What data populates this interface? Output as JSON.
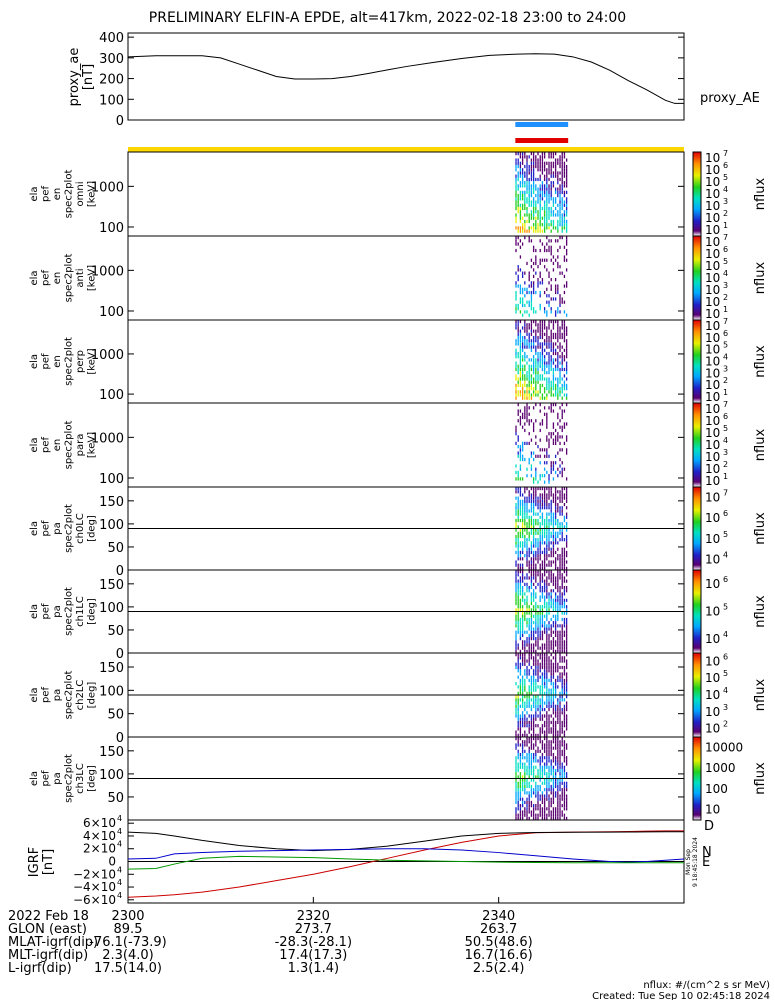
{
  "title": "PRELIMINARY ELFIN-A EPDE, alt=417km, 2022-02-18 23:00 to 24:00",
  "chart_data": [
    {
      "type": "line",
      "panel": "proxy_ae",
      "ylabel_lines": [
        "proxy_ae",
        "[nT]"
      ],
      "series": [
        {
          "name": "proxy_AE",
          "color": "#000000",
          "x": [
            0,
            3,
            5,
            8,
            10,
            12,
            14,
            16,
            18,
            20,
            22,
            24,
            26,
            28,
            30,
            33,
            36,
            39,
            42,
            44,
            46,
            48,
            50,
            52,
            54,
            56,
            58,
            59,
            60
          ],
          "values": [
            305,
            310,
            310,
            310,
            300,
            270,
            240,
            210,
            198,
            198,
            200,
            210,
            225,
            242,
            258,
            278,
            297,
            312,
            318,
            320,
            318,
            305,
            280,
            240,
            190,
            145,
            95,
            80,
            80
          ]
        }
      ],
      "yticks": [
        "0",
        "100",
        "200",
        "300",
        "400"
      ],
      "ylim": [
        0,
        420
      ]
    },
    {
      "type": "heatmap",
      "panel": "ela_pef_en_spec2plot_omni",
      "ylabel_lines": [
        "ela",
        "pef",
        "en",
        "spec2plot",
        "omni",
        "[keV]"
      ],
      "yticks": [
        "100",
        "1000"
      ],
      "log_y": true,
      "ylim": [
        60,
        7000
      ],
      "colorbar": {
        "label": "nflux",
        "ticks": [
          "10",
          "10",
          "10",
          "10",
          "10",
          "10",
          "10"
        ],
        "exponents": [
          "1",
          "2",
          "3",
          "4",
          "5",
          "6",
          "7"
        ]
      }
    },
    {
      "type": "heatmap",
      "panel": "ela_pef_en_spec2plot_anti",
      "ylabel_lines": [
        "ela",
        "pef",
        "en",
        "spec2plot",
        "anti",
        "[keV]"
      ],
      "yticks": [
        "100",
        "1000"
      ],
      "log_y": true,
      "ylim": [
        60,
        7000
      ],
      "colorbar": {
        "label": "nflux",
        "ticks": [
          "10",
          "10",
          "10",
          "10",
          "10",
          "10",
          "10"
        ],
        "exponents": [
          "1",
          "2",
          "3",
          "4",
          "5",
          "6",
          "7"
        ]
      }
    },
    {
      "type": "heatmap",
      "panel": "ela_pef_en_spec2plot_perp",
      "ylabel_lines": [
        "ela",
        "pef",
        "en",
        "spec2plot",
        "perp",
        "[keV]"
      ],
      "yticks": [
        "100",
        "1000"
      ],
      "log_y": true,
      "ylim": [
        60,
        7000
      ],
      "colorbar": {
        "label": "nflux",
        "ticks": [
          "10",
          "10",
          "10",
          "10",
          "10",
          "10",
          "10"
        ],
        "exponents": [
          "1",
          "2",
          "3",
          "4",
          "5",
          "6",
          "7"
        ]
      }
    },
    {
      "type": "heatmap",
      "panel": "ela_pef_en_spec2plot_para",
      "ylabel_lines": [
        "ela",
        "pef",
        "en",
        "spec2plot",
        "para",
        "[keV]"
      ],
      "yticks": [
        "100",
        "1000"
      ],
      "log_y": true,
      "ylim": [
        60,
        7000
      ],
      "colorbar": {
        "label": "nflux",
        "ticks": [
          "10",
          "10",
          "10",
          "10",
          "10",
          "10",
          "10"
        ],
        "exponents": [
          "1",
          "2",
          "3",
          "4",
          "5",
          "6",
          "7"
        ]
      }
    },
    {
      "type": "heatmap",
      "panel": "ela_pef_pa_spec2plot_ch0LC",
      "ylabel_lines": [
        "ela",
        "pef",
        "pa",
        "spec2plot",
        "ch0LC",
        "[deg]"
      ],
      "yticks": [
        "0",
        "50",
        "100",
        "150"
      ],
      "ylim": [
        0,
        180
      ],
      "colorbar": {
        "label": "nflux",
        "ticks": [
          "10",
          "10",
          "10",
          "10"
        ],
        "exponents": [
          "4",
          "5",
          "6",
          "7"
        ]
      }
    },
    {
      "type": "heatmap",
      "panel": "ela_pef_pa_spec2plot_ch1LC",
      "ylabel_lines": [
        "ela",
        "pef",
        "pa",
        "spec2plot",
        "ch1LC",
        "[deg]"
      ],
      "yticks": [
        "0",
        "50",
        "100",
        "150"
      ],
      "ylim": [
        0,
        180
      ],
      "colorbar": {
        "label": "nflux",
        "ticks": [
          "10",
          "10",
          "10"
        ],
        "exponents": [
          "4",
          "5",
          "6"
        ]
      }
    },
    {
      "type": "heatmap",
      "panel": "ela_pef_pa_spec2plot_ch2LC",
      "ylabel_lines": [
        "ela",
        "pef",
        "pa",
        "spec2plot",
        "ch2LC",
        "[deg]"
      ],
      "yticks": [
        "0",
        "50",
        "100",
        "150"
      ],
      "ylim": [
        0,
        180
      ],
      "colorbar": {
        "label": "nflux",
        "ticks": [
          "10",
          "10",
          "10",
          "10",
          "10"
        ],
        "exponents": [
          "2",
          "3",
          "4",
          "5",
          "6"
        ]
      }
    },
    {
      "type": "heatmap",
      "panel": "ela_pef_pa_spec2plot_ch3LC",
      "ylabel_lines": [
        "ela",
        "pef",
        "pa",
        "spec2plot",
        "ch3LC",
        "[deg]"
      ],
      "yticks": [
        "50",
        "100",
        "150"
      ],
      "ylim": [
        0,
        180
      ],
      "colorbar": {
        "label": "nflux",
        "ticks": [
          "10",
          "100",
          "1000",
          "10000"
        ]
      }
    },
    {
      "type": "line",
      "panel": "IGRF",
      "ylabel_lines": [
        "IGRF",
        "[nT]"
      ],
      "yticks": [
        {
          "base": "−6×10",
          "exp": "4"
        },
        {
          "base": "−4×10",
          "exp": "4"
        },
        {
          "base": "−2×10",
          "exp": "4"
        },
        {
          "base": "0",
          "exp": ""
        },
        {
          "base": "2×10",
          "exp": "4"
        },
        {
          "base": "4×10",
          "exp": "4"
        },
        {
          "base": "6×10",
          "exp": "4"
        }
      ],
      "ylim": [
        -65000,
        65000
      ],
      "x": [
        0,
        3,
        5,
        8,
        12,
        16,
        20,
        24,
        28,
        32,
        36,
        40,
        44,
        48,
        52,
        54,
        56,
        58,
        60
      ],
      "series": [
        {
          "name": "D",
          "color": "#cc0000",
          "values": [
            -56000,
            -54000,
            -52000,
            -48000,
            -40000,
            -30000,
            -20000,
            -8000,
            5000,
            18000,
            30000,
            40000,
            45000,
            46000,
            46500,
            47000,
            47500,
            48000,
            48000
          ]
        },
        {
          "name": "",
          "color": "#000000",
          "values": [
            46000,
            44000,
            40000,
            33000,
            25000,
            20000,
            17000,
            19000,
            24000,
            32000,
            40000,
            44000,
            45500,
            45800,
            46000,
            46200,
            46400,
            46500,
            46500
          ]
        },
        {
          "name": "N",
          "color": "#0000cc",
          "values": [
            4000,
            5000,
            12000,
            14000,
            16000,
            17000,
            18000,
            19000,
            20000,
            20000,
            18000,
            14000,
            9000,
            4000,
            0,
            -1000,
            0,
            2000,
            4000
          ]
        },
        {
          "name": "E",
          "color": "#009900",
          "values": [
            -12000,
            -11000,
            -4000,
            5000,
            8000,
            7000,
            6000,
            4000,
            2000,
            1000,
            0,
            -1000,
            -1500,
            -2000,
            -2000,
            -2000,
            -2000,
            -2000,
            -2000
          ]
        }
      ],
      "side_text": [
        "Mon Sep",
        "9 18:45:18 2024"
      ]
    }
  ],
  "ae_legend": "proxy_AE",
  "bars": {
    "blue": "#1e90ff",
    "red": "#e00000",
    "yellow": "#ffd700"
  },
  "igrf_legend": {
    "d": "D",
    "n": "N",
    "e": "E"
  },
  "ephemeris": {
    "rows": [
      {
        "label": "2022 Feb 18",
        "values": [
          "2300",
          "2320",
          "2340"
        ]
      },
      {
        "label": "GLON (east)",
        "values": [
          "89.5",
          "273.7",
          "263.7"
        ]
      },
      {
        "label": "MLAT-igrf(dip)",
        "values": [
          "-76.1(-73.9)",
          "-28.3(-28.1)",
          "50.5(48.6)"
        ]
      },
      {
        "label": "MLT-igrf(dip)",
        "values": [
          "2.3(4.0)",
          "17.4(17.3)",
          "16.7(16.6)"
        ]
      },
      {
        "label": "L-igrf(dip)",
        "values": [
          "17.5(14.0)",
          "1.3(1.4)",
          "2.5(2.4)"
        ]
      }
    ]
  },
  "footer": {
    "units": "nflux: #/(cm^2 s sr MeV)",
    "created": "Created: Tue Sep 10 02:45:18 2024"
  }
}
